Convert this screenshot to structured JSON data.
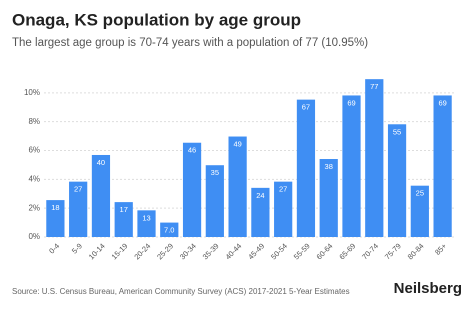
{
  "chart_data": {
    "type": "bar",
    "title": "Onaga, KS population by age group",
    "subtitle": "The largest age group is 70-74 years with a population of 77 (10.95%)",
    "categories": [
      "0-4",
      "5-9",
      "10-14",
      "15-19",
      "20-24",
      "25-29",
      "30-34",
      "35-39",
      "40-44",
      "45-49",
      "50-54",
      "55-59",
      "60-64",
      "65-69",
      "70-74",
      "75-79",
      "80-84",
      "85+"
    ],
    "values": [
      2.56,
      3.84,
      5.69,
      2.42,
      1.85,
      1.0,
      6.54,
      4.98,
      6.97,
      3.41,
      3.84,
      9.53,
      5.41,
      9.82,
      10.95,
      7.82,
      3.56,
      9.82
    ],
    "population": [
      18,
      27,
      40,
      17,
      13,
      {
        "value": 7,
        "label": "7.0"
      },
      46,
      35,
      49,
      24,
      27,
      67,
      38,
      69,
      77,
      55,
      25,
      69
    ],
    "color": "#3f8ef3",
    "ylim": [
      0,
      11.1
    ],
    "yticks": [
      {
        "value": 0,
        "label": "0%"
      },
      {
        "value": 2,
        "label": "2%"
      },
      {
        "value": 4,
        "label": "4%"
      },
      {
        "value": 6,
        "label": "6%"
      },
      {
        "value": 8,
        "label": "8%"
      },
      {
        "value": 10,
        "label": "10%"
      }
    ],
    "grid": true,
    "source": "Source: U.S. Census Bureau, American Community Survey (ACS) 2017-2021 5-Year Estimates",
    "brand": "Neilsberg"
  }
}
